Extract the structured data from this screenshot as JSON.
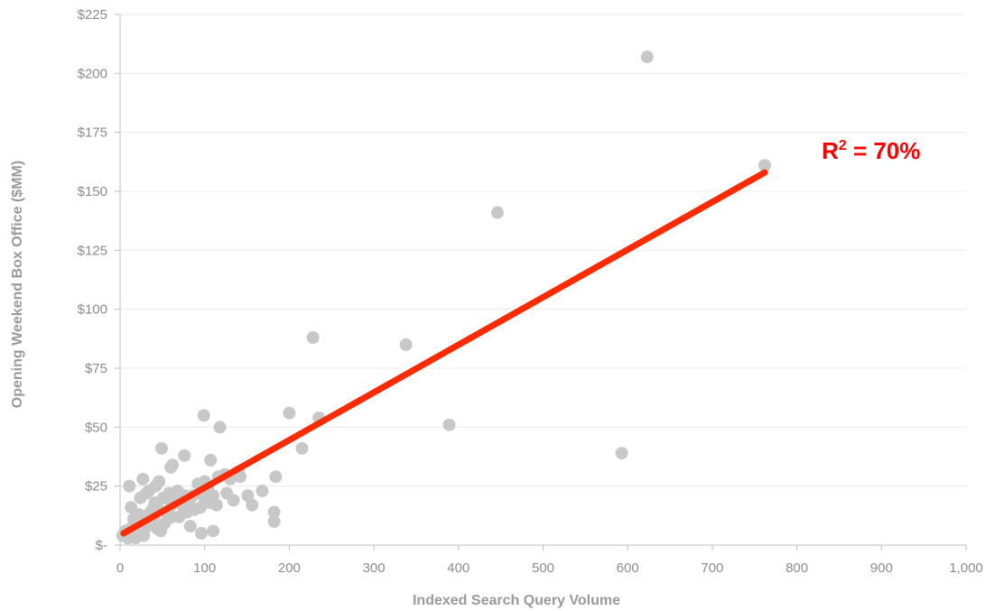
{
  "chart_data": {
    "type": "scatter",
    "title": "",
    "xlabel": "Indexed Search Query Volume",
    "ylabel": "Opening Weekend Box Office ($MM)",
    "xlim": [
      0,
      1000
    ],
    "ylim": [
      0,
      225
    ],
    "x_ticks": [
      0,
      100,
      200,
      300,
      400,
      500,
      600,
      700,
      800,
      900,
      1000
    ],
    "x_tick_labels": [
      "0",
      "100",
      "200",
      "300",
      "400",
      "500",
      "600",
      "700",
      "800",
      "900",
      "1,000"
    ],
    "y_ticks": [
      0,
      25,
      50,
      75,
      100,
      125,
      150,
      175,
      200,
      225
    ],
    "y_tick_labels": [
      "$-",
      "$25",
      "$50",
      "$75",
      "$100",
      "$125",
      "$150",
      "$175",
      "$200",
      "$225"
    ],
    "grid": "horizontal",
    "point_color": "#c8c8c8",
    "points": [
      [
        623,
        207
      ],
      [
        762,
        161
      ],
      [
        446,
        141
      ],
      [
        338,
        85
      ],
      [
        228,
        88
      ],
      [
        389,
        51
      ],
      [
        593,
        39
      ],
      [
        200,
        56
      ],
      [
        235,
        54
      ],
      [
        215,
        41
      ],
      [
        184,
        29
      ],
      [
        182,
        14
      ],
      [
        182,
        10
      ],
      [
        99,
        55
      ],
      [
        118,
        50
      ],
      [
        49,
        41
      ],
      [
        76,
        38
      ],
      [
        107,
        36
      ],
      [
        60,
        33
      ],
      [
        62,
        34
      ],
      [
        142,
        29
      ],
      [
        140,
        31
      ],
      [
        130,
        28
      ],
      [
        168,
        23
      ],
      [
        151,
        21
      ],
      [
        156,
        17
      ],
      [
        126,
        22
      ],
      [
        134,
        19
      ],
      [
        116,
        29
      ],
      [
        114,
        17
      ],
      [
        110,
        21
      ],
      [
        100,
        27
      ],
      [
        92,
        26
      ],
      [
        95,
        16
      ],
      [
        88,
        15
      ],
      [
        82,
        17
      ],
      [
        79,
        14
      ],
      [
        76,
        21
      ],
      [
        66,
        20
      ],
      [
        58,
        22
      ],
      [
        61,
        17
      ],
      [
        55,
        14
      ],
      [
        61,
        12
      ],
      [
        51,
        20
      ],
      [
        46,
        27
      ],
      [
        42,
        25
      ],
      [
        41,
        18
      ],
      [
        38,
        15
      ],
      [
        34,
        23
      ],
      [
        31,
        22
      ],
      [
        27,
        28
      ],
      [
        24,
        20
      ],
      [
        11,
        25
      ],
      [
        13,
        16
      ],
      [
        16,
        11
      ],
      [
        19,
        9
      ],
      [
        22,
        13
      ],
      [
        25,
        6
      ],
      [
        28,
        4
      ],
      [
        32,
        8
      ],
      [
        35,
        10
      ],
      [
        40,
        12
      ],
      [
        44,
        7
      ],
      [
        48,
        6
      ],
      [
        52,
        9
      ],
      [
        56,
        11
      ],
      [
        70,
        12
      ],
      [
        83,
        8
      ],
      [
        96,
        5
      ],
      [
        110,
        6
      ],
      [
        100,
        20
      ],
      [
        3,
        4
      ],
      [
        6,
        6
      ],
      [
        9,
        3
      ],
      [
        12,
        7
      ],
      [
        15,
        5
      ],
      [
        18,
        3
      ],
      [
        21,
        8
      ],
      [
        30,
        12
      ],
      [
        36,
        14
      ],
      [
        46,
        15
      ],
      [
        104,
        24
      ],
      [
        124,
        30
      ],
      [
        106,
        18
      ],
      [
        68,
        23
      ],
      [
        86,
        21
      ],
      [
        75,
        16
      ]
    ],
    "trendline": {
      "x": [
        4,
        762
      ],
      "y": [
        5,
        158
      ],
      "color": "#ff2a00",
      "r_squared_label": "R² = 70%"
    }
  },
  "annotation": {
    "r": "R",
    "sup": "2",
    "rest": " = 70%",
    "color": "#ff0000"
  }
}
